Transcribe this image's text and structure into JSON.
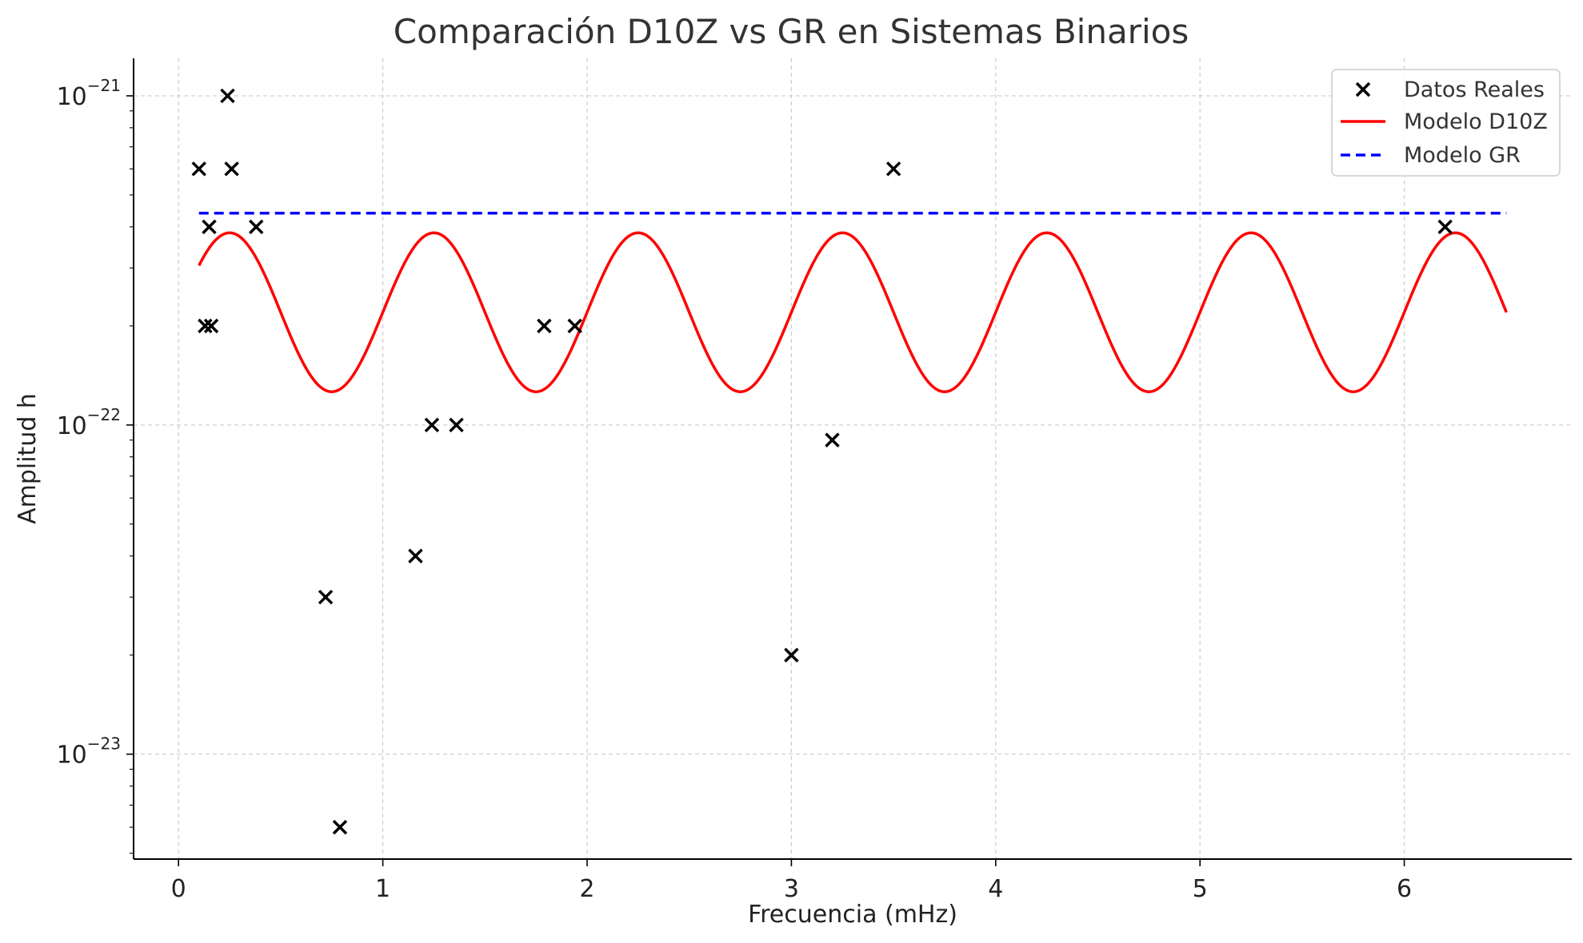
{
  "chart_data": {
    "type": "line",
    "title": "Comparación D10Z vs GR en Sistemas Binarios",
    "xlabel": "Frecuencia (mHz)",
    "ylabel": "Amplitud h",
    "xlim": [
      -0.22,
      6.82
    ],
    "ylim": [
      4.8e-24,
      1.3e-21
    ],
    "yscale": "log",
    "xticks": [
      0,
      1,
      2,
      3,
      4,
      5,
      6
    ],
    "xtick_labels": [
      "0",
      "1",
      "2",
      "3",
      "4",
      "5",
      "6"
    ],
    "yticks": [
      {
        "value": 1e-23,
        "base": "10",
        "exp": "−23"
      },
      {
        "value": 1e-22,
        "base": "10",
        "exp": "−22"
      },
      {
        "value": 1e-21,
        "base": "10",
        "exp": "−21"
      }
    ],
    "grid": true,
    "legend_position": "upper right",
    "scatter": {
      "name": "Datos Reales",
      "color": "#000000",
      "marker": "x",
      "points": [
        {
          "x": 0.1,
          "y": 6e-22
        },
        {
          "x": 0.13,
          "y": 2e-22
        },
        {
          "x": 0.15,
          "y": 4e-22
        },
        {
          "x": 0.16,
          "y": 2e-22
        },
        {
          "x": 0.24,
          "y": 1e-21
        },
        {
          "x": 0.26,
          "y": 6e-22
        },
        {
          "x": 0.38,
          "y": 4e-22
        },
        {
          "x": 0.72,
          "y": 3e-23
        },
        {
          "x": 0.79,
          "y": 6e-24
        },
        {
          "x": 1.16,
          "y": 4e-23
        },
        {
          "x": 1.24,
          "y": 1e-22
        },
        {
          "x": 1.36,
          "y": 1e-22
        },
        {
          "x": 1.79,
          "y": 2e-22
        },
        {
          "x": 1.94,
          "y": 2e-22
        },
        {
          "x": 3.0,
          "y": 2e-23
        },
        {
          "x": 3.2,
          "y": 9e-23
        },
        {
          "x": 3.5,
          "y": 6e-22
        },
        {
          "x": 6.2,
          "y": 4e-22
        }
      ]
    },
    "series": [
      {
        "name": "Modelo D10Z",
        "color": "#ff0000",
        "style": "solid",
        "x_range": [
          0.1,
          6.5
        ],
        "y_center": 2.2e-22,
        "y_max": 3.8e-22,
        "y_min": 1.25e-22,
        "period": 1.0,
        "peak_at": 0.25
      },
      {
        "name": "Modelo GR",
        "color": "#0000ff",
        "style": "dashed",
        "x": [
          0.1,
          6.5
        ],
        "y": [
          4.4e-22,
          4.4e-22
        ]
      }
    ]
  }
}
